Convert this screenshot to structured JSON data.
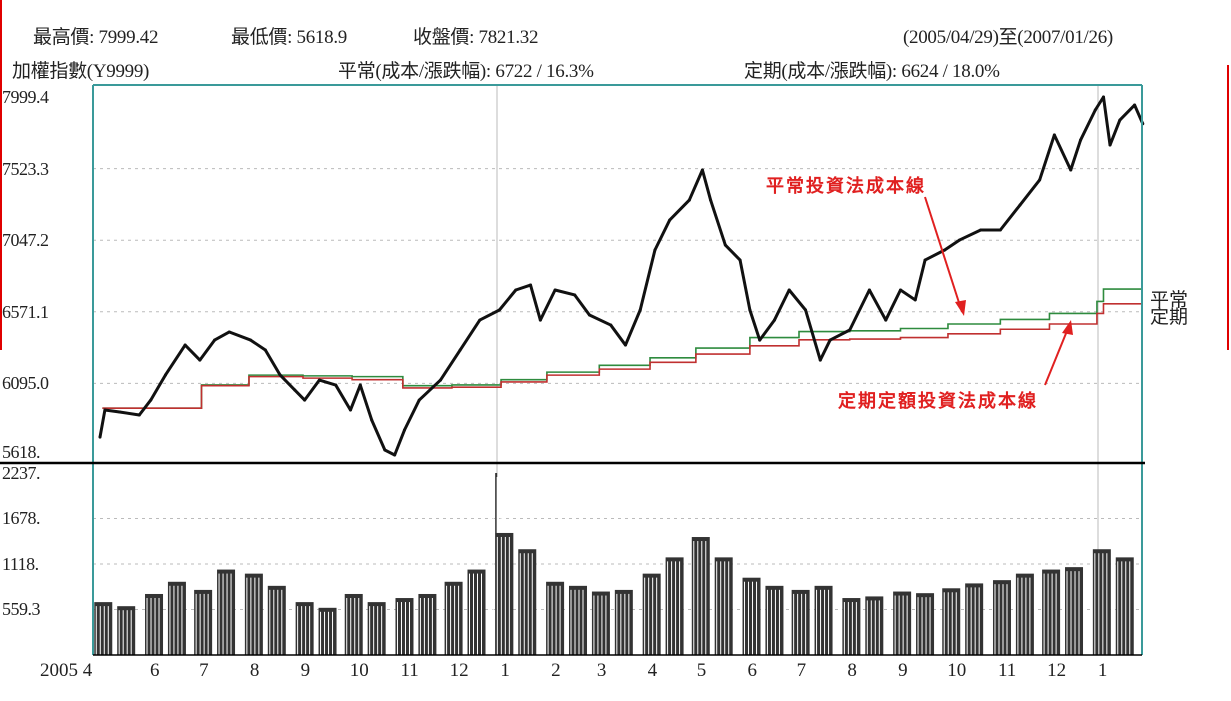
{
  "header": {
    "high_label": "最高價: 7999.42",
    "low_label": "最低價: 5618.9",
    "close_label": "收盤價: 7821.32",
    "range_label": "(2005/04/29)至(2007/01/26)",
    "index_label": "加權指數(Y9999)",
    "regular_label": "平常(成本/漲跌幅): 6722 / 16.3%",
    "periodic_label": "定期(成本/漲跌幅): 6624 / 18.0%"
  },
  "colors": {
    "price": "#111111",
    "regular_cost": "#2e8b3e",
    "periodic_cost": "#c03030",
    "annotation": "#e02020",
    "frame": "#3a9a9a",
    "volume": "#333333"
  },
  "chart_data": [
    {
      "type": "line",
      "ylim": [
        5618.9,
        7999.4
      ],
      "y_ticks": [
        "7999.4",
        "7523.3",
        "7047.2",
        "6571.1",
        "6095.0",
        "5618."
      ],
      "y_tick_values": [
        7999.4,
        7523.3,
        7047.2,
        6571.1,
        6095.0,
        5618.9
      ],
      "grid": true,
      "annotations": [
        "平常投資法成本線",
        "定期定額投資法成本線"
      ],
      "side_labels": [
        "平常",
        "定期"
      ],
      "series": [
        {
          "name": "加權指數(Y9999)",
          "type": "line",
          "x": [
            "2005-04-29",
            "2005-05-02",
            "2005-05-11",
            "2005-05-23",
            "2005-05-30",
            "2005-06-08",
            "2005-06-20",
            "2005-06-29",
            "2005-07-08",
            "2005-07-17",
            "2005-07-30",
            "2005-08-08",
            "2005-08-17",
            "2005-08-26",
            "2005-09-01",
            "2005-09-10",
            "2005-09-20",
            "2005-09-29",
            "2005-10-05",
            "2005-10-12",
            "2005-10-20",
            "2005-10-26",
            "2005-11-01",
            "2005-11-10",
            "2005-11-23",
            "2005-12-05",
            "2005-12-17",
            "2005-12-29",
            "2006-01-08",
            "2006-01-17",
            "2006-01-23",
            "2006-02-01",
            "2006-02-13",
            "2006-02-22",
            "2006-03-07",
            "2006-03-16",
            "2006-03-25",
            "2006-04-03",
            "2006-04-12",
            "2006-04-24",
            "2006-05-02",
            "2006-05-07",
            "2006-05-16",
            "2006-05-25",
            "2006-05-31",
            "2006-06-06",
            "2006-06-15",
            "2006-06-24",
            "2006-07-04",
            "2006-07-13",
            "2006-07-19",
            "2006-07-31",
            "2006-08-12",
            "2006-08-22",
            "2006-08-31",
            "2006-09-09",
            "2006-09-15",
            "2006-09-27",
            "2006-10-06",
            "2006-10-19",
            "2006-10-31",
            "2006-11-12",
            "2006-11-24",
            "2006-12-03",
            "2006-12-13",
            "2006-12-19",
            "2006-12-28",
            "2007-01-02",
            "2007-01-06",
            "2007-01-12",
            "2007-01-21",
            "2007-01-26"
          ],
          "y": [
            5738,
            5918,
            5905,
            5885,
            5984,
            6151,
            6350,
            6250,
            6383,
            6437,
            6383,
            6317,
            6151,
            6051,
            5984,
            6117,
            6084,
            5918,
            6084,
            5851,
            5652,
            5618.9,
            5785,
            5984,
            6117,
            6317,
            6516,
            6583,
            6716,
            6749,
            6516,
            6716,
            6683,
            6550,
            6483,
            6350,
            6583,
            6982,
            7181,
            7314,
            7514,
            7314,
            7015,
            6915,
            6583,
            6383,
            6516,
            6716,
            6583,
            6250,
            6383,
            6450,
            6716,
            6516,
            6716,
            6650,
            6915,
            6982,
            7048,
            7115,
            7115,
            7281,
            7448,
            7747,
            7514,
            7713,
            7913,
            7999.4,
            7680,
            7846,
            7946,
            7821.32
          ]
        },
        {
          "name": "平常",
          "type": "step",
          "x": [
            "2005-05-31",
            "2005-06-30",
            "2005-07-29",
            "2005-08-31",
            "2005-09-30",
            "2005-10-31",
            "2005-11-30",
            "2005-12-30",
            "2006-01-27",
            "2006-02-28",
            "2006-03-31",
            "2006-04-28",
            "2006-05-31",
            "2006-06-30",
            "2006-07-31",
            "2006-08-31",
            "2006-09-29",
            "2006-10-31",
            "2006-11-30",
            "2006-12-29",
            "2007-01-02"
          ],
          "y": [
            5930,
            6085,
            6150,
            6145,
            6140,
            6080,
            6085,
            6120,
            6170,
            6215,
            6265,
            6330,
            6400,
            6440,
            6445,
            6460,
            6490,
            6520,
            6560,
            6640,
            6722
          ]
        },
        {
          "name": "定期",
          "type": "step",
          "x": [
            "2005-05-31",
            "2005-06-30",
            "2005-07-29",
            "2005-08-31",
            "2005-09-30",
            "2005-10-31",
            "2005-11-30",
            "2005-12-30",
            "2006-01-27",
            "2006-02-28",
            "2006-03-31",
            "2006-04-28",
            "2006-05-31",
            "2006-06-30",
            "2006-07-31",
            "2006-08-31",
            "2006-09-29",
            "2006-10-31",
            "2006-11-30",
            "2006-12-29",
            "2007-01-02"
          ],
          "y": [
            5930,
            6080,
            6140,
            6130,
            6120,
            6065,
            6070,
            6105,
            6150,
            6190,
            6235,
            6290,
            6345,
            6385,
            6390,
            6400,
            6425,
            6455,
            6490,
            6560,
            6624
          ]
        }
      ]
    },
    {
      "type": "bar",
      "ylim": [
        0,
        2237
      ],
      "y_ticks": [
        "2237.",
        "1678.",
        "1118.",
        "559.3"
      ],
      "y_tick_values": [
        2237,
        1678,
        1118,
        559.3
      ],
      "grid": true,
      "x_ticks": [
        "2005 4",
        "6",
        "7",
        "8",
        "9",
        "10",
        "11",
        "12",
        "1",
        "2",
        "3",
        "4",
        "5",
        "6",
        "7",
        "8",
        "9",
        "10",
        "11",
        "12",
        "1"
      ],
      "x_tick_dates": [
        "2005-04-29",
        "2005-06-01",
        "2005-07-01",
        "2005-08-01",
        "2005-09-01",
        "2005-10-01",
        "2005-11-01",
        "2005-12-01",
        "2006-01-01",
        "2006-02-01",
        "2006-03-01",
        "2006-04-01",
        "2006-05-01",
        "2006-06-01",
        "2006-07-01",
        "2006-08-01",
        "2006-09-01",
        "2006-10-01",
        "2006-11-01",
        "2006-12-01",
        "2007-01-01"
      ],
      "x": [
        "2005-05-01",
        "2005-05-15",
        "2005-06-01",
        "2005-06-15",
        "2005-07-01",
        "2005-07-15",
        "2005-08-01",
        "2005-08-15",
        "2005-09-01",
        "2005-09-15",
        "2005-10-01",
        "2005-10-15",
        "2005-11-01",
        "2005-11-15",
        "2005-12-01",
        "2005-12-15",
        "2005-12-27",
        "2006-01-01",
        "2006-01-15",
        "2006-02-01",
        "2006-02-15",
        "2006-03-01",
        "2006-03-15",
        "2006-04-01",
        "2006-04-15",
        "2006-05-01",
        "2006-05-15",
        "2006-06-01",
        "2006-06-15",
        "2006-07-01",
        "2006-07-15",
        "2006-08-01",
        "2006-08-15",
        "2006-09-01",
        "2006-09-15",
        "2006-10-01",
        "2006-10-15",
        "2006-11-01",
        "2006-11-15",
        "2006-12-01",
        "2006-12-15",
        "2007-01-01",
        "2007-01-15"
      ],
      "values": [
        650,
        600,
        750,
        900,
        800,
        1050,
        1000,
        850,
        650,
        580,
        750,
        650,
        700,
        750,
        900,
        1050,
        2237,
        1500,
        1300,
        900,
        850,
        780,
        800,
        1000,
        1200,
        1450,
        1200,
        950,
        850,
        800,
        850,
        700,
        720,
        780,
        760,
        820,
        880,
        920,
        1000,
        1050,
        1080,
        1300,
        1200
      ]
    }
  ]
}
